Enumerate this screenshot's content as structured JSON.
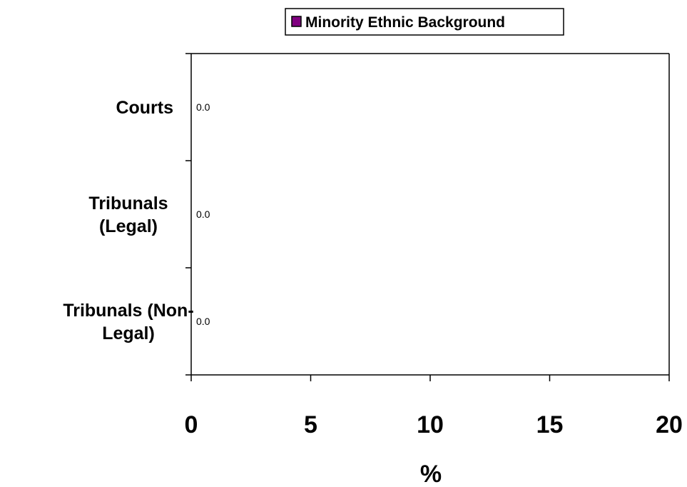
{
  "chart_data": {
    "type": "bar",
    "orientation": "horizontal",
    "categories": [
      "Courts",
      "Tribunals (Legal)",
      "Tribunals (Non-Legal)"
    ],
    "category_label_lines": [
      [
        "Courts"
      ],
      [
        "Tribunals",
        "(Legal)"
      ],
      [
        "Tribunals (Non-",
        "Legal)"
      ]
    ],
    "series": [
      {
        "name": "Minority Ethnic Background",
        "values": [
          0.0,
          0.0,
          0.0
        ],
        "data_labels": [
          "0.0",
          "0.0",
          "0.0"
        ],
        "color": "#800080"
      }
    ],
    "xlabel": "%",
    "ylabel": "",
    "xlim": [
      0,
      20
    ],
    "x_ticks": [
      0,
      5,
      10,
      15,
      20
    ],
    "x_tick_labels": [
      "0",
      "5",
      "10",
      "15",
      "20"
    ],
    "grid": false,
    "legend_position": "top-center"
  }
}
